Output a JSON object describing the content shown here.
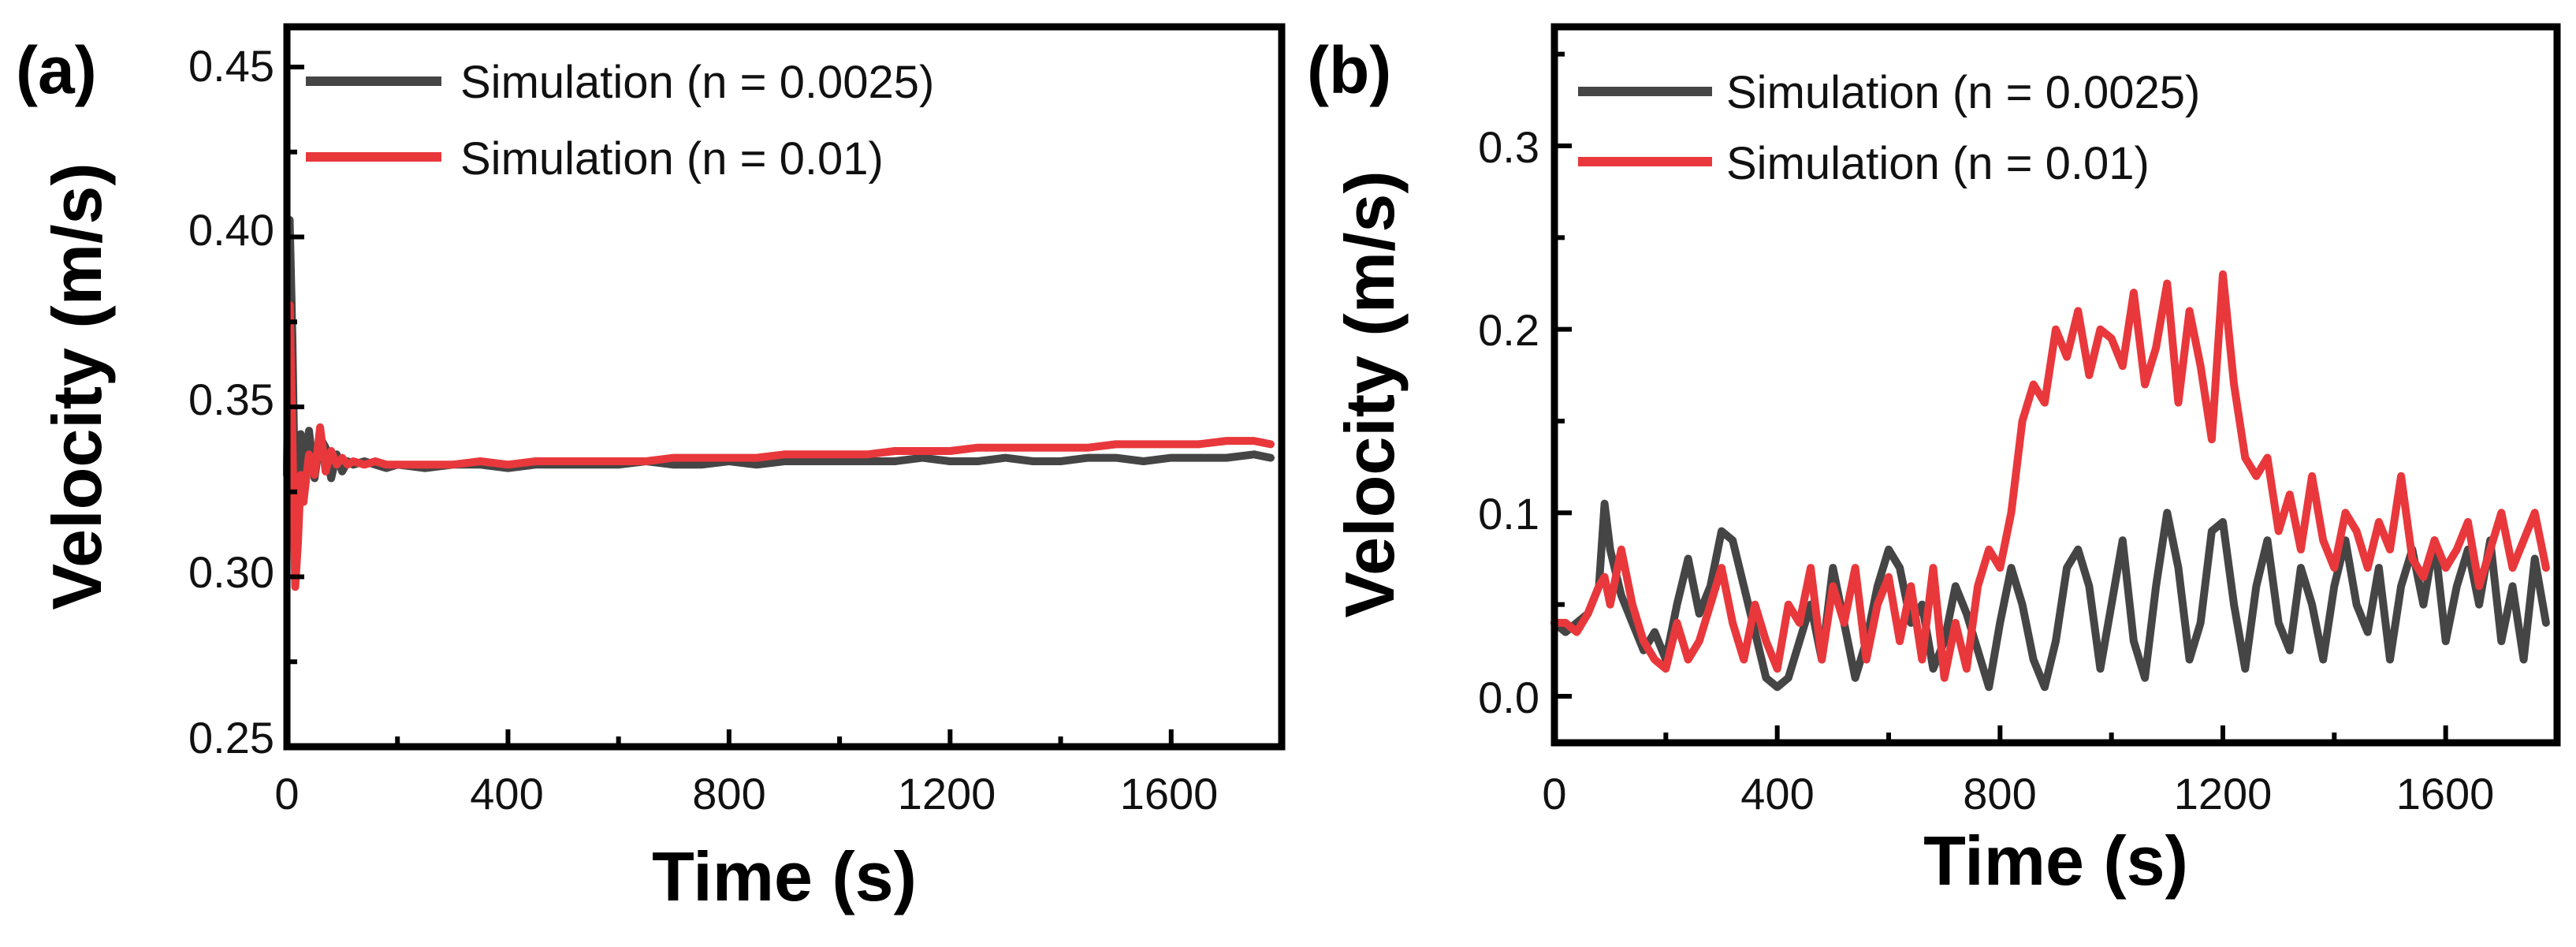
{
  "colors": {
    "series_dark": "#454545",
    "series_red": "#e8383c",
    "axis": "#000000"
  },
  "chart_data": [
    {
      "panel_label": "(a)",
      "type": "line",
      "xlabel": "Time (s)",
      "ylabel": "Velocity (m/s)",
      "xlim": [
        0,
        1800
      ],
      "ylim": [
        0.25,
        0.46
      ],
      "xticks": [
        0,
        400,
        800,
        1200,
        1600
      ],
      "xtick_labels": [
        "0",
        "400",
        "800",
        "1200",
        "1600"
      ],
      "yticks": [
        0.25,
        0.3,
        0.35,
        0.4,
        0.45
      ],
      "ytick_labels": [
        "0.25",
        "0.30",
        "0.35",
        "0.40",
        "0.45"
      ],
      "legend_position": "top-left",
      "series": [
        {
          "name": "Simulation (n = 0.0025)",
          "color": "#454545",
          "x": [
            0,
            5,
            10,
            15,
            20,
            25,
            30,
            35,
            40,
            50,
            60,
            70,
            80,
            90,
            100,
            110,
            120,
            140,
            160,
            180,
            200,
            250,
            300,
            350,
            400,
            450,
            500,
            550,
            600,
            650,
            700,
            750,
            800,
            850,
            900,
            950,
            1000,
            1050,
            1100,
            1150,
            1200,
            1250,
            1300,
            1350,
            1400,
            1450,
            1500,
            1550,
            1600,
            1650,
            1700,
            1750,
            1780
          ],
          "values": [
            0.33,
            0.405,
            0.37,
            0.318,
            0.325,
            0.342,
            0.327,
            0.336,
            0.343,
            0.329,
            0.341,
            0.338,
            0.329,
            0.336,
            0.331,
            0.334,
            0.333,
            0.334,
            0.333,
            0.332,
            0.333,
            0.332,
            0.333,
            0.333,
            0.332,
            0.333,
            0.333,
            0.333,
            0.333,
            0.334,
            0.333,
            0.333,
            0.334,
            0.333,
            0.334,
            0.334,
            0.334,
            0.334,
            0.334,
            0.335,
            0.334,
            0.334,
            0.335,
            0.334,
            0.334,
            0.335,
            0.335,
            0.334,
            0.335,
            0.335,
            0.335,
            0.336,
            0.335
          ]
        },
        {
          "name": "Simulation (n = 0.01)",
          "color": "#e8383c",
          "x": [
            0,
            5,
            10,
            15,
            20,
            25,
            30,
            35,
            40,
            50,
            60,
            70,
            80,
            90,
            100,
            110,
            120,
            140,
            160,
            180,
            200,
            250,
            300,
            350,
            400,
            450,
            500,
            550,
            600,
            650,
            700,
            750,
            800,
            850,
            900,
            950,
            1000,
            1050,
            1100,
            1150,
            1200,
            1250,
            1300,
            1350,
            1400,
            1450,
            1500,
            1550,
            1600,
            1650,
            1700,
            1750,
            1780
          ],
          "values": [
            0.33,
            0.38,
            0.34,
            0.297,
            0.31,
            0.33,
            0.322,
            0.329,
            0.336,
            0.33,
            0.344,
            0.331,
            0.337,
            0.333,
            0.335,
            0.333,
            0.334,
            0.333,
            0.334,
            0.333,
            0.333,
            0.333,
            0.333,
            0.334,
            0.333,
            0.334,
            0.334,
            0.334,
            0.334,
            0.334,
            0.335,
            0.335,
            0.335,
            0.335,
            0.336,
            0.336,
            0.336,
            0.336,
            0.337,
            0.337,
            0.337,
            0.338,
            0.338,
            0.338,
            0.338,
            0.338,
            0.339,
            0.339,
            0.339,
            0.339,
            0.34,
            0.34,
            0.339
          ]
        }
      ]
    },
    {
      "panel_label": "(b)",
      "type": "line",
      "xlabel": "Time (s)",
      "ylabel": "Velocity (m/s)",
      "xlim": [
        0,
        1800
      ],
      "ylim": [
        -0.02,
        0.36
      ],
      "xticks": [
        0,
        400,
        800,
        1200,
        1600
      ],
      "xtick_labels": [
        "0",
        "400",
        "800",
        "1200",
        "1600"
      ],
      "yticks": [
        0.0,
        0.1,
        0.2,
        0.3
      ],
      "ytick_labels": [
        "0.0",
        "0.1",
        "0.2",
        "0.3"
      ],
      "legend_position": "top-left",
      "series": [
        {
          "name": "Simulation (n = 0.0025)",
          "color": "#454545",
          "x": [
            0,
            20,
            40,
            60,
            80,
            90,
            100,
            120,
            140,
            160,
            180,
            200,
            220,
            240,
            260,
            280,
            300,
            320,
            340,
            360,
            380,
            400,
            420,
            440,
            460,
            480,
            500,
            520,
            540,
            560,
            580,
            600,
            620,
            640,
            660,
            680,
            700,
            720,
            740,
            760,
            780,
            800,
            820,
            840,
            860,
            880,
            900,
            920,
            940,
            960,
            980,
            1000,
            1020,
            1040,
            1060,
            1080,
            1100,
            1120,
            1140,
            1160,
            1180,
            1200,
            1220,
            1240,
            1260,
            1280,
            1300,
            1320,
            1340,
            1360,
            1380,
            1400,
            1420,
            1440,
            1460,
            1480,
            1500,
            1520,
            1540,
            1560,
            1580,
            1600,
            1620,
            1640,
            1660,
            1680,
            1700,
            1720,
            1740,
            1760,
            1780
          ],
          "values": [
            0.04,
            0.035,
            0.04,
            0.045,
            0.06,
            0.105,
            0.08,
            0.055,
            0.04,
            0.025,
            0.035,
            0.02,
            0.05,
            0.075,
            0.045,
            0.06,
            0.09,
            0.085,
            0.06,
            0.035,
            0.01,
            0.005,
            0.01,
            0.03,
            0.05,
            0.02,
            0.07,
            0.04,
            0.01,
            0.03,
            0.06,
            0.08,
            0.07,
            0.04,
            0.05,
            0.015,
            0.03,
            0.06,
            0.045,
            0.025,
            0.005,
            0.04,
            0.07,
            0.05,
            0.02,
            0.005,
            0.03,
            0.07,
            0.08,
            0.06,
            0.015,
            0.05,
            0.085,
            0.03,
            0.01,
            0.06,
            0.1,
            0.07,
            0.02,
            0.04,
            0.09,
            0.095,
            0.05,
            0.015,
            0.06,
            0.085,
            0.04,
            0.025,
            0.07,
            0.05,
            0.02,
            0.06,
            0.085,
            0.05,
            0.035,
            0.07,
            0.02,
            0.06,
            0.08,
            0.05,
            0.085,
            0.03,
            0.06,
            0.08,
            0.05,
            0.085,
            0.03,
            0.06,
            0.02,
            0.075,
            0.04
          ]
        },
        {
          "name": "Simulation (n = 0.01)",
          "color": "#e8383c",
          "x": [
            0,
            20,
            40,
            60,
            80,
            90,
            100,
            120,
            140,
            160,
            180,
            200,
            220,
            240,
            260,
            280,
            300,
            320,
            340,
            360,
            380,
            400,
            420,
            440,
            460,
            480,
            500,
            520,
            540,
            560,
            580,
            600,
            620,
            640,
            660,
            680,
            700,
            720,
            740,
            760,
            780,
            800,
            820,
            840,
            860,
            880,
            900,
            920,
            940,
            960,
            980,
            1000,
            1020,
            1040,
            1060,
            1080,
            1100,
            1120,
            1140,
            1160,
            1180,
            1200,
            1220,
            1240,
            1260,
            1280,
            1300,
            1320,
            1340,
            1360,
            1380,
            1400,
            1420,
            1440,
            1460,
            1480,
            1500,
            1520,
            1540,
            1560,
            1580,
            1600,
            1620,
            1640,
            1660,
            1680,
            1700,
            1720,
            1740,
            1760,
            1780
          ],
          "values": [
            0.04,
            0.04,
            0.035,
            0.045,
            0.06,
            0.065,
            0.05,
            0.08,
            0.05,
            0.03,
            0.02,
            0.015,
            0.04,
            0.02,
            0.03,
            0.05,
            0.07,
            0.04,
            0.02,
            0.05,
            0.03,
            0.015,
            0.05,
            0.04,
            0.07,
            0.02,
            0.06,
            0.04,
            0.07,
            0.02,
            0.05,
            0.065,
            0.03,
            0.06,
            0.02,
            0.07,
            0.01,
            0.04,
            0.015,
            0.06,
            0.08,
            0.07,
            0.1,
            0.15,
            0.17,
            0.16,
            0.2,
            0.185,
            0.21,
            0.175,
            0.2,
            0.195,
            0.18,
            0.22,
            0.17,
            0.19,
            0.225,
            0.16,
            0.21,
            0.18,
            0.14,
            0.23,
            0.17,
            0.13,
            0.12,
            0.13,
            0.09,
            0.11,
            0.08,
            0.12,
            0.085,
            0.07,
            0.1,
            0.09,
            0.07,
            0.095,
            0.08,
            0.12,
            0.075,
            0.065,
            0.085,
            0.07,
            0.08,
            0.095,
            0.06,
            0.08,
            0.1,
            0.07,
            0.085,
            0.1,
            0.07
          ]
        }
      ]
    }
  ]
}
